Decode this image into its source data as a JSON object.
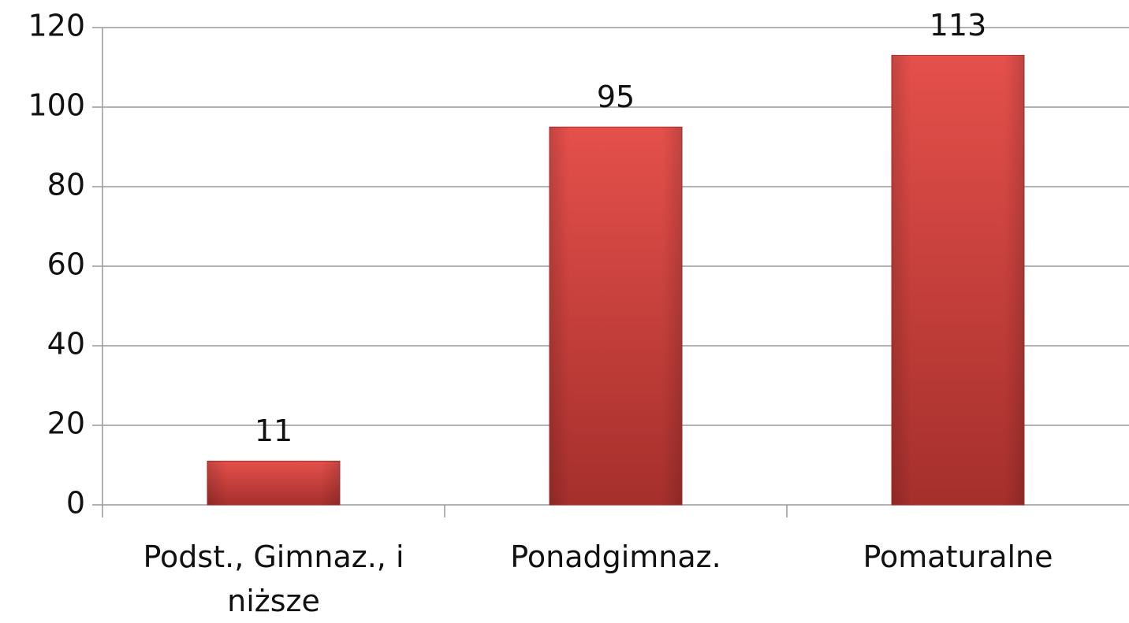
{
  "chart_data": {
    "type": "bar",
    "categories": [
      "Podst., Gimnaz., i niższe",
      "Ponadgimnaz.",
      "Pomaturalne"
    ],
    "values": [
      11,
      95,
      113
    ],
    "color": "#d9403c",
    "ylim": [
      0,
      120
    ],
    "yticks": [
      0,
      20,
      40,
      60,
      80,
      100,
      120
    ],
    "grid": true
  }
}
